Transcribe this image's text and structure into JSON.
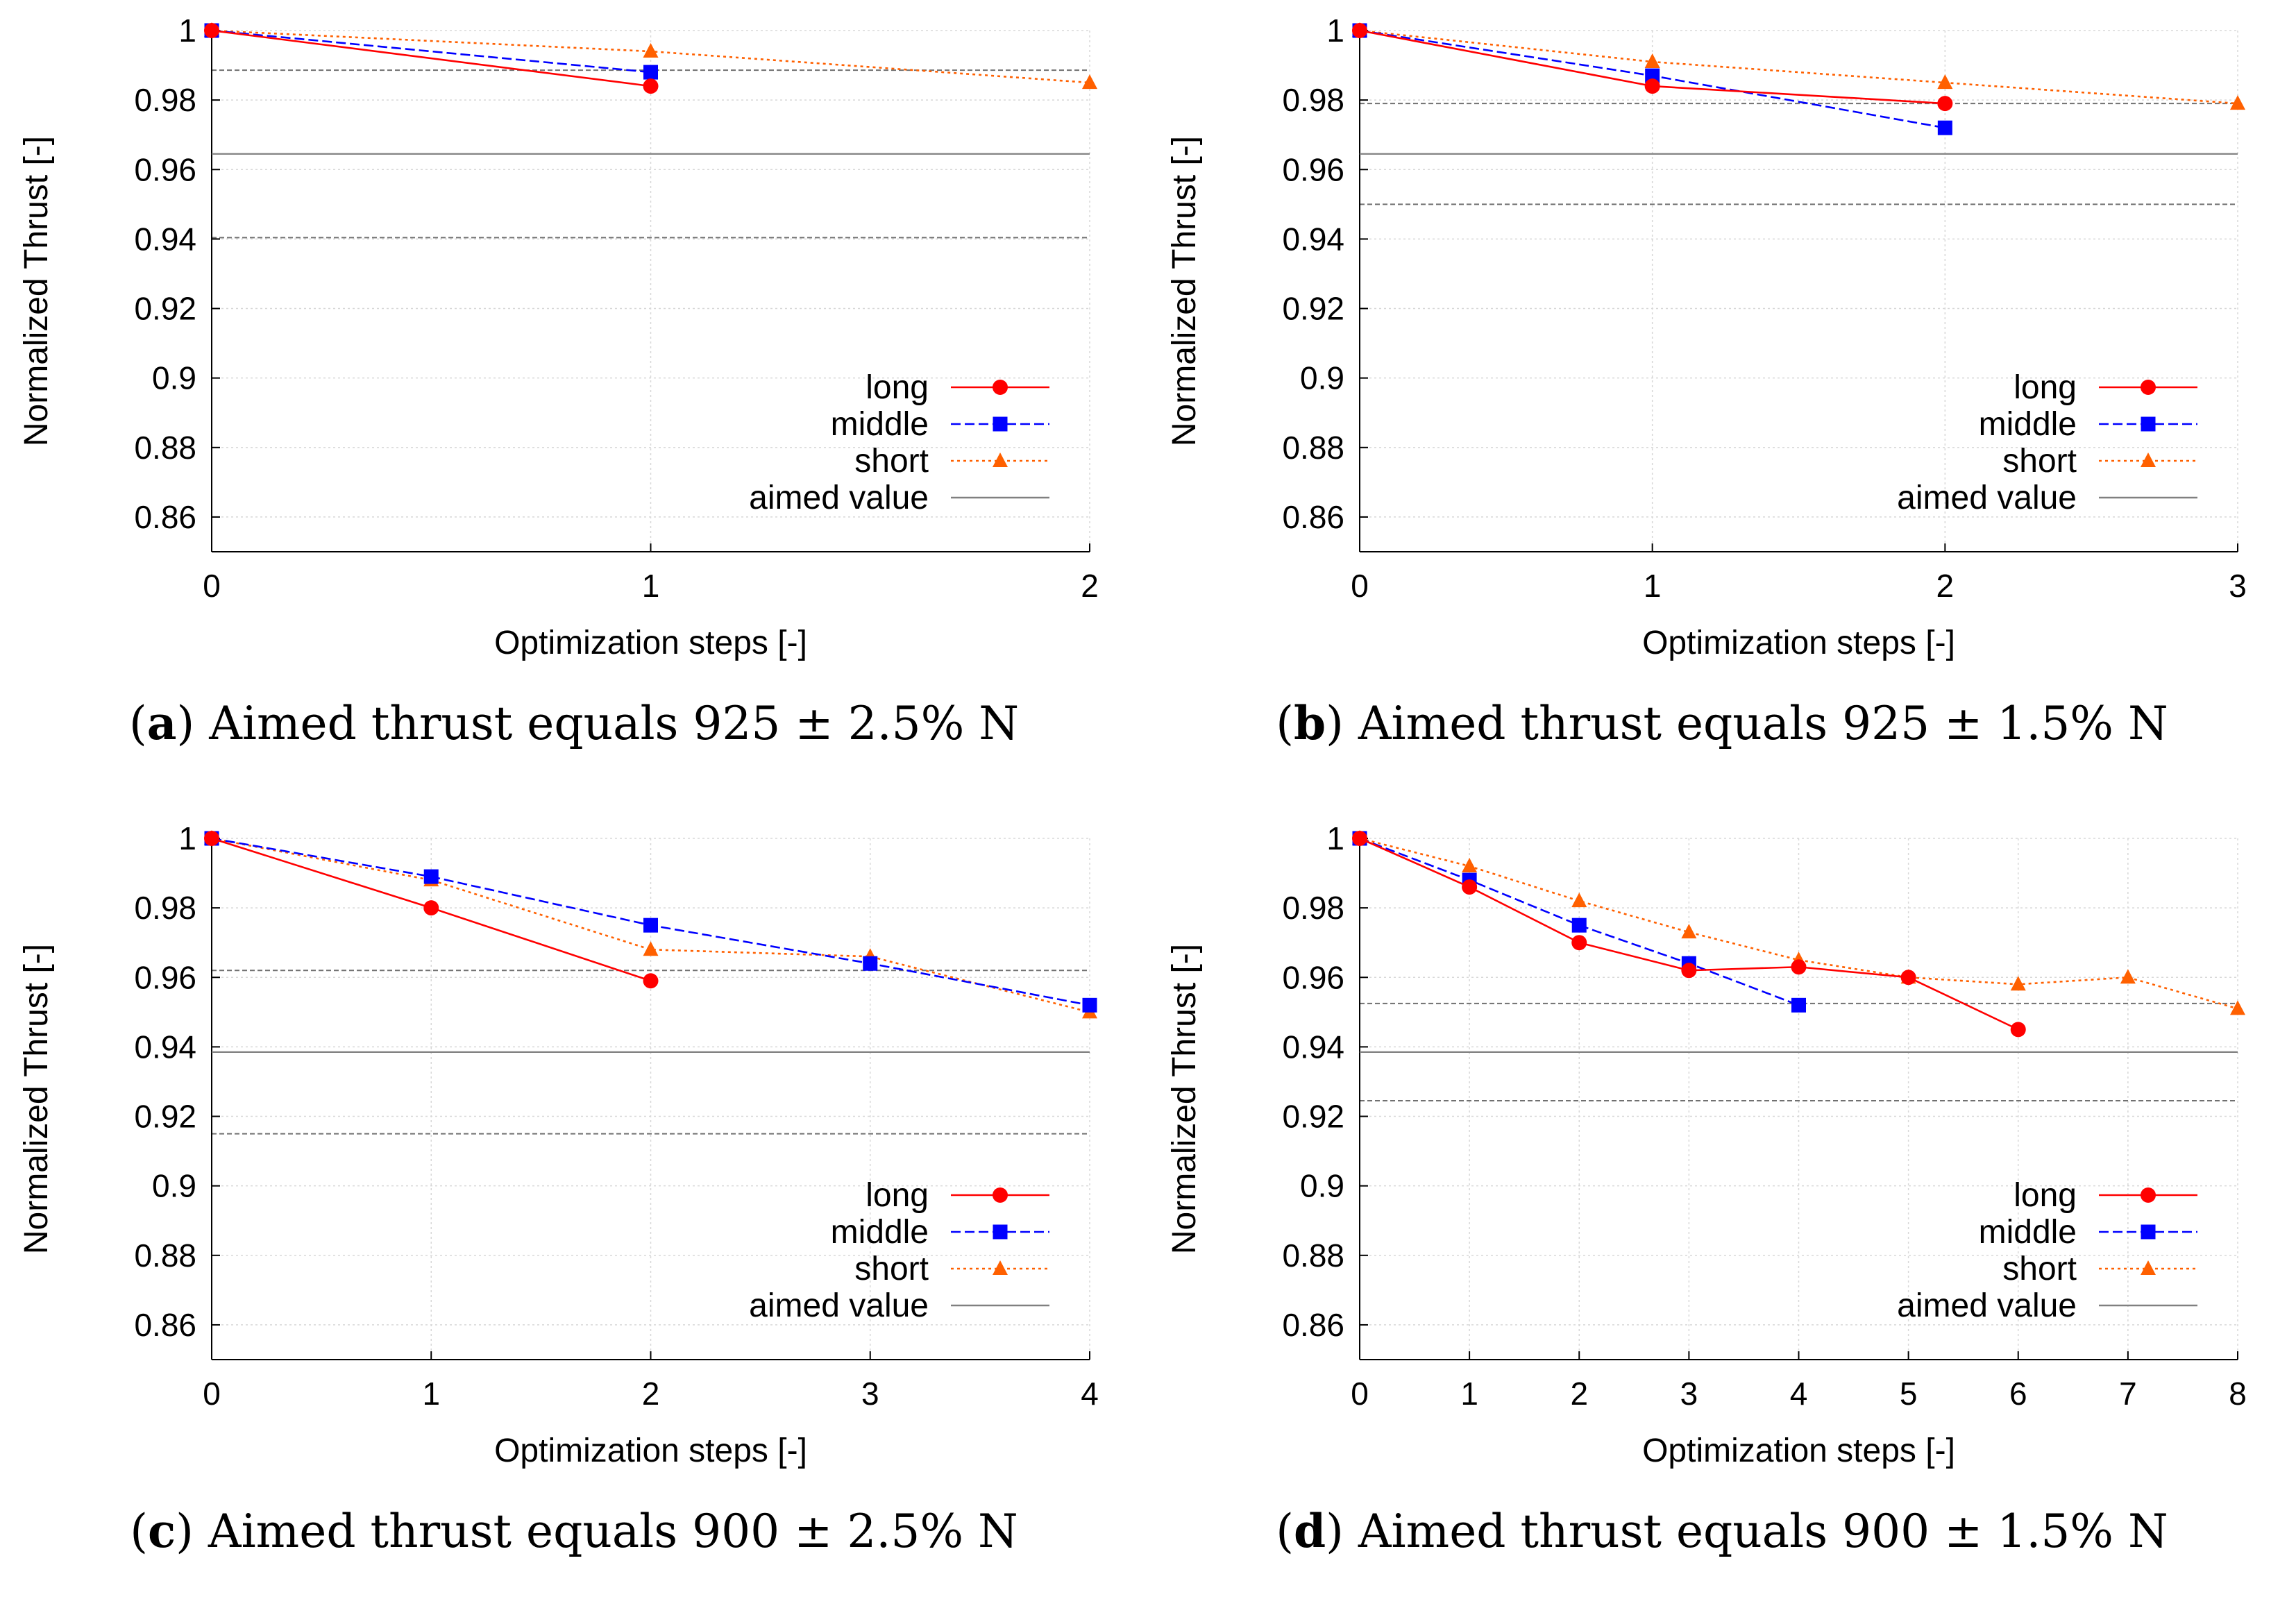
{
  "chart_data": [
    {
      "type": "line",
      "caption": {
        "open": "(",
        "letter": "a",
        "close": ")",
        "text": "Aimed thrust equals 925 ± 2.5% N"
      },
      "xlabel": "Optimization steps [-]",
      "ylabel": "Normalized Thrust [-]",
      "xlim": [
        0,
        2
      ],
      "ylim": [
        0.85,
        1.0
      ],
      "xticks": [
        "0",
        "1",
        "2"
      ],
      "yticks": [
        "1",
        "0.98",
        "0.96",
        "0.94",
        "0.92",
        "0.9",
        "0.88",
        "0.86"
      ],
      "grid": true,
      "legend_position": "bottom-right",
      "series": [
        {
          "name": "long",
          "x": [
            0,
            1
          ],
          "values": [
            1.0,
            0.984
          ],
          "color": "#ff0000",
          "marker": "circle",
          "style": "solid"
        },
        {
          "name": "middle",
          "x": [
            0,
            1
          ],
          "values": [
            1.0,
            0.988
          ],
          "color": "#0000ff",
          "marker": "square",
          "style": "dashed"
        },
        {
          "name": "short",
          "x": [
            0,
            1,
            2
          ],
          "values": [
            1.0,
            0.994,
            0.985
          ],
          "color": "#ff6000",
          "marker": "triangle",
          "style": "dotted"
        },
        {
          "name": "aimed value",
          "constant": 0.9645,
          "color": "#808080",
          "style": "solid"
        }
      ],
      "tolerance_lines": [
        0.9886,
        0.9404
      ]
    },
    {
      "type": "line",
      "caption": {
        "open": "(",
        "letter": "b",
        "close": ")",
        "text": "Aimed thrust equals 925 ± 1.5% N"
      },
      "xlabel": "Optimization steps [-]",
      "ylabel": "Normalized Thrust [-]",
      "xlim": [
        0,
        3
      ],
      "ylim": [
        0.85,
        1.0
      ],
      "xticks": [
        "0",
        "1",
        "2",
        "3"
      ],
      "yticks": [
        "1",
        "0.98",
        "0.96",
        "0.94",
        "0.92",
        "0.9",
        "0.88",
        "0.86"
      ],
      "grid": true,
      "legend_position": "bottom-right",
      "series": [
        {
          "name": "long",
          "x": [
            0,
            1,
            2
          ],
          "values": [
            1.0,
            0.984,
            0.979
          ],
          "color": "#ff0000",
          "marker": "circle",
          "style": "solid"
        },
        {
          "name": "middle",
          "x": [
            0,
            1,
            2
          ],
          "values": [
            1.0,
            0.987,
            0.972
          ],
          "color": "#0000ff",
          "marker": "square",
          "style": "dashed"
        },
        {
          "name": "short",
          "x": [
            0,
            1,
            2,
            3
          ],
          "values": [
            1.0,
            0.991,
            0.985,
            0.979
          ],
          "color": "#ff6000",
          "marker": "triangle",
          "style": "dotted"
        },
        {
          "name": "aimed value",
          "constant": 0.9645,
          "color": "#808080",
          "style": "solid"
        }
      ],
      "tolerance_lines": [
        0.979,
        0.95
      ]
    },
    {
      "type": "line",
      "caption": {
        "open": "(",
        "letter": "c",
        "close": ")",
        "text": "Aimed thrust equals 900 ± 2.5% N"
      },
      "xlabel": "Optimization steps [-]",
      "ylabel": "Normalized Thrust [-]",
      "xlim": [
        0,
        4
      ],
      "ylim": [
        0.85,
        1.0
      ],
      "xticks": [
        "0",
        "1",
        "2",
        "3",
        "4"
      ],
      "yticks": [
        "1",
        "0.98",
        "0.96",
        "0.94",
        "0.92",
        "0.9",
        "0.88",
        "0.86"
      ],
      "grid": true,
      "legend_position": "bottom-right",
      "series": [
        {
          "name": "long",
          "x": [
            0,
            1,
            2
          ],
          "values": [
            1.0,
            0.98,
            0.959
          ],
          "color": "#ff0000",
          "marker": "circle",
          "style": "solid"
        },
        {
          "name": "middle",
          "x": [
            0,
            1,
            2,
            3,
            4
          ],
          "values": [
            1.0,
            0.989,
            0.975,
            0.964,
            0.952
          ],
          "color": "#0000ff",
          "marker": "square",
          "style": "dashed"
        },
        {
          "name": "short",
          "x": [
            0,
            1,
            2,
            3,
            4
          ],
          "values": [
            1.0,
            0.988,
            0.968,
            0.966,
            0.95
          ],
          "color": "#ff6000",
          "marker": "triangle",
          "style": "dotted"
        },
        {
          "name": "aimed value",
          "constant": 0.9385,
          "color": "#808080",
          "style": "solid"
        }
      ],
      "tolerance_lines": [
        0.962,
        0.915
      ]
    },
    {
      "type": "line",
      "caption": {
        "open": "(",
        "letter": "d",
        "close": ")",
        "text": "Aimed thrust equals 900 ± 1.5% N"
      },
      "xlabel": "Optimization steps [-]",
      "ylabel": "Normalized Thrust [-]",
      "xlim": [
        0,
        8
      ],
      "ylim": [
        0.85,
        1.0
      ],
      "xticks": [
        "0",
        "1",
        "2",
        "3",
        "4",
        "5",
        "6",
        "7",
        "8"
      ],
      "yticks": [
        "1",
        "0.98",
        "0.96",
        "0.94",
        "0.92",
        "0.9",
        "0.88",
        "0.86"
      ],
      "grid": true,
      "legend_position": "bottom-right",
      "series": [
        {
          "name": "long",
          "x": [
            0,
            1,
            2,
            3,
            4,
            5,
            6
          ],
          "values": [
            1.0,
            0.986,
            0.97,
            0.962,
            0.963,
            0.96,
            0.945
          ],
          "color": "#ff0000",
          "marker": "circle",
          "style": "solid"
        },
        {
          "name": "middle",
          "x": [
            0,
            1,
            2,
            3,
            4
          ],
          "values": [
            1.0,
            0.988,
            0.975,
            0.964,
            0.952
          ],
          "color": "#0000ff",
          "marker": "square",
          "style": "dashed"
        },
        {
          "name": "short",
          "x": [
            0,
            1,
            2,
            3,
            4,
            5,
            6,
            7,
            8
          ],
          "values": [
            1.0,
            0.992,
            0.982,
            0.973,
            0.965,
            0.96,
            0.958,
            0.96,
            0.951
          ],
          "color": "#ff6000",
          "marker": "triangle",
          "style": "dotted"
        },
        {
          "name": "aimed value",
          "constant": 0.9385,
          "color": "#808080",
          "style": "solid"
        }
      ],
      "tolerance_lines": [
        0.9525,
        0.9245
      ]
    }
  ]
}
